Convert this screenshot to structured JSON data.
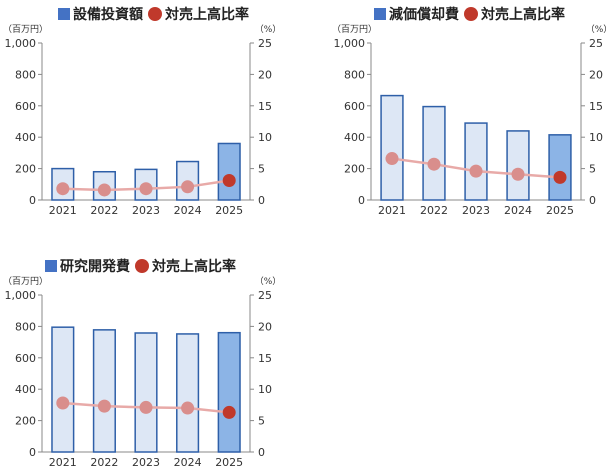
{
  "colors": {
    "bar_light": "#dde7f5",
    "bar_dark": "#8cb4e6",
    "bar_stroke": "#2e5fa8",
    "legend_square": "#4472c4",
    "line": "#e8aaa8",
    "marker": "#d98e8c",
    "marker_last": "#c0392b",
    "axis": "#888888"
  },
  "chart_data": [
    {
      "type": "bar",
      "legend": {
        "bar_label": "設備投資額",
        "line_label": "対売上高比率"
      },
      "left_unit": "（百万円）",
      "right_unit": "（%）",
      "left_ticks": [
        "0",
        "200",
        "400",
        "600",
        "800",
        "1,000"
      ],
      "right_ticks": [
        "0",
        "5",
        "10",
        "15",
        "20",
        "25"
      ],
      "categories": [
        "2021",
        "2022",
        "2023",
        "2024",
        "2025"
      ],
      "ylim": [
        0,
        1000
      ],
      "y2lim": [
        0,
        25
      ],
      "series": [
        {
          "values": [
            200,
            180,
            195,
            245,
            360
          ]
        },
        {
          "type": "line",
          "axis": "right",
          "values": [
            1.8,
            1.6,
            1.8,
            2.1,
            3.1
          ]
        }
      ]
    },
    {
      "type": "bar",
      "legend": {
        "bar_label": "減価償却費",
        "line_label": "対売上高比率"
      },
      "left_unit": "（百万円）",
      "right_unit": "（%）",
      "left_ticks": [
        "0",
        "200",
        "400",
        "600",
        "800",
        "1,000"
      ],
      "right_ticks": [
        "0",
        "5",
        "10",
        "15",
        "20",
        "25"
      ],
      "categories": [
        "2021",
        "2022",
        "2023",
        "2024",
        "2025"
      ],
      "ylim": [
        0,
        1000
      ],
      "y2lim": [
        0,
        25
      ],
      "series": [
        {
          "values": [
            665,
            595,
            490,
            440,
            415
          ]
        },
        {
          "type": "line",
          "axis": "right",
          "values": [
            6.6,
            5.7,
            4.6,
            4.1,
            3.6
          ]
        }
      ]
    },
    {
      "type": "bar",
      "legend": {
        "bar_label": "研究開発費",
        "line_label": "対売上高比率"
      },
      "left_unit": "（百万円）",
      "right_unit": "（%）",
      "left_ticks": [
        "0",
        "200",
        "400",
        "600",
        "800",
        "1,000"
      ],
      "right_ticks": [
        "0",
        "5",
        "10",
        "15",
        "20",
        "25"
      ],
      "categories": [
        "2021",
        "2022",
        "2023",
        "2024",
        "2025"
      ],
      "ylim": [
        0,
        1000
      ],
      "y2lim": [
        0,
        25
      ],
      "series": [
        {
          "values": [
            795,
            778,
            758,
            752,
            760
          ]
        },
        {
          "type": "line",
          "axis": "right",
          "values": [
            7.8,
            7.3,
            7.1,
            7.0,
            6.3
          ]
        }
      ]
    }
  ]
}
